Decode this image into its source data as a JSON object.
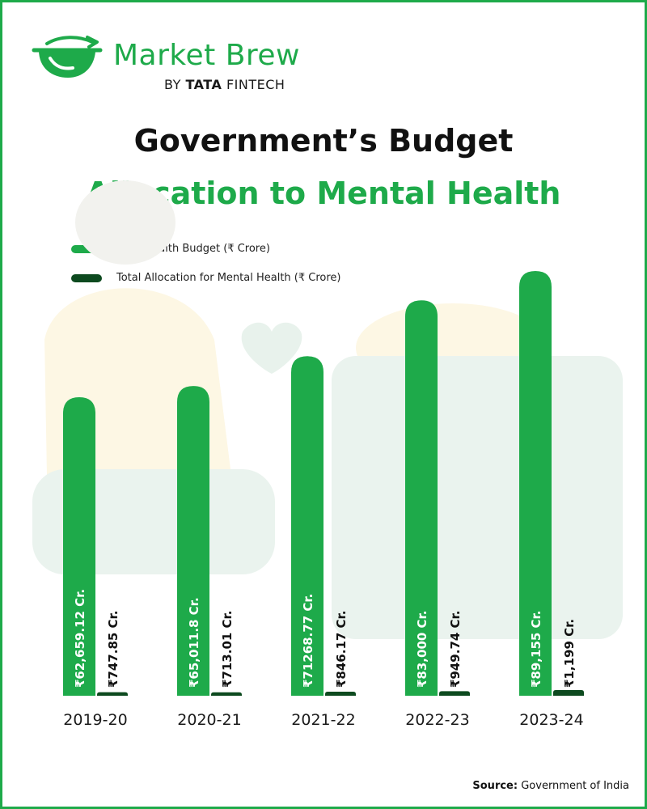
{
  "brand": {
    "name": "Market Brew",
    "sub_prefix": "BY",
    "sub_bold": "TATA",
    "sub_rest": "FINTECH"
  },
  "title_line1": "Government’s Budget",
  "title_line2": "Allocation to Mental Health",
  "legend": [
    {
      "label": "Total Health Budget (₹ Crore)",
      "color": "#1eaa4a"
    },
    {
      "label": "Total Allocation for Mental Health (₹ Crore)",
      "color": "#0d4a1f"
    }
  ],
  "colors": {
    "accent": "#1eaa4a",
    "dark": "#0d4a1f",
    "frame": "#1eaa4a"
  },
  "source": {
    "label": "Source:",
    "text": "Government of India"
  },
  "chart_data": {
    "type": "bar",
    "categories": [
      "2019-20",
      "2020-21",
      "2021-22",
      "2022-23",
      "2023-24"
    ],
    "series": [
      {
        "name": "Total Health Budget (₹ Crore)",
        "values": [
          62659.12,
          65011.8,
          71268.77,
          83000,
          89155
        ],
        "labels": [
          "₹62,659.12 Cr.",
          "₹65,011.8 Cr.",
          "₹71268.77 Cr.",
          "₹83,000 Cr.",
          "₹89,155 Cr."
        ]
      },
      {
        "name": "Total Allocation for Mental Health (₹ Crore)",
        "values": [
          747.85,
          713.01,
          846.17,
          949.74,
          1199
        ],
        "labels": [
          "₹747.85 Cr.",
          "₹713.01 Cr.",
          "₹846.17 Cr.",
          "₹949.74 Cr.",
          "₹1,199 Cr."
        ]
      }
    ]
  }
}
